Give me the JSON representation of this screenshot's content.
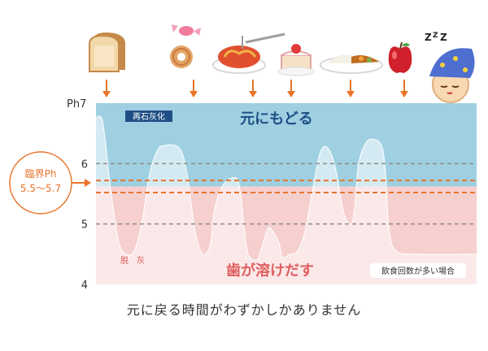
{
  "chart_data": {
    "type": "line",
    "y_axis_prefix": "Ph",
    "yticks": [
      4,
      5,
      6,
      7
    ],
    "ylim": [
      4,
      7
    ],
    "critical_ph": {
      "label": "臨界Ph",
      "range_label": "5.5〜5.7",
      "low": 5.52,
      "high": 5.72
    },
    "dashed_levels": [
      6.0,
      5.0
    ],
    "zones": {
      "remineralization": {
        "tag": "再石灰化",
        "caption": "元にもどる",
        "color": "#9FD0E2",
        "text_color": "#1F4E86"
      },
      "demineralization": {
        "tag": "脱　灰",
        "caption": "歯が溶けだす",
        "color": "#F6CFCF",
        "text_color": "#E06060"
      }
    },
    "annotation": "飲食回数が多い場合",
    "bottom_caption": "元に戻る時間がわずかしかありません",
    "events": [
      {
        "icon": "bread-icon",
        "x": 0.04
      },
      {
        "icon": "candy-icon",
        "x": 0.2
      },
      {
        "icon": "spaghetti-icon",
        "x": 0.41
      },
      {
        "icon": "cake-icon",
        "x": 0.52
      },
      {
        "icon": "curry-rice-icon",
        "x": 0.69
      },
      {
        "icon": "apple-icon",
        "x": 0.83
      },
      {
        "icon": "sleeping-face-icon",
        "x": 1.0
      }
    ],
    "series": [
      {
        "values": [
          [
            0.0,
            6.75
          ],
          [
            0.01,
            6.78
          ],
          [
            0.02,
            6.6
          ],
          [
            0.04,
            5.5
          ],
          [
            0.06,
            4.7
          ],
          [
            0.08,
            4.5
          ],
          [
            0.1,
            4.55
          ],
          [
            0.12,
            5.0
          ],
          [
            0.14,
            5.8
          ],
          [
            0.16,
            6.2
          ],
          [
            0.18,
            6.3
          ],
          [
            0.22,
            6.25
          ],
          [
            0.24,
            5.8
          ],
          [
            0.26,
            4.9
          ],
          [
            0.28,
            4.5
          ],
          [
            0.3,
            4.65
          ],
          [
            0.31,
            5.2
          ],
          [
            0.33,
            5.6
          ],
          [
            0.35,
            5.74
          ],
          [
            0.37,
            5.75
          ],
          [
            0.38,
            5.5
          ],
          [
            0.39,
            4.9
          ],
          [
            0.4,
            4.5
          ],
          [
            0.42,
            4.4
          ],
          [
            0.43,
            4.5
          ],
          [
            0.45,
            4.9
          ],
          [
            0.46,
            4.92
          ],
          [
            0.48,
            4.7
          ],
          [
            0.49,
            4.45
          ],
          [
            0.51,
            4.5
          ],
          [
            0.53,
            4.55
          ],
          [
            0.55,
            4.9
          ],
          [
            0.57,
            5.6
          ],
          [
            0.59,
            6.2
          ],
          [
            0.61,
            6.25
          ],
          [
            0.63,
            5.9
          ],
          [
            0.65,
            5.2
          ],
          [
            0.67,
            5.0
          ],
          [
            0.68,
            5.3
          ],
          [
            0.69,
            6.0
          ],
          [
            0.71,
            6.35
          ],
          [
            0.73,
            6.4
          ],
          [
            0.75,
            6.3
          ],
          [
            0.76,
            5.9
          ],
          [
            0.77,
            4.9
          ],
          [
            0.79,
            4.55
          ],
          [
            0.85,
            4.5
          ],
          [
            1.0,
            4.5
          ]
        ]
      }
    ]
  }
}
